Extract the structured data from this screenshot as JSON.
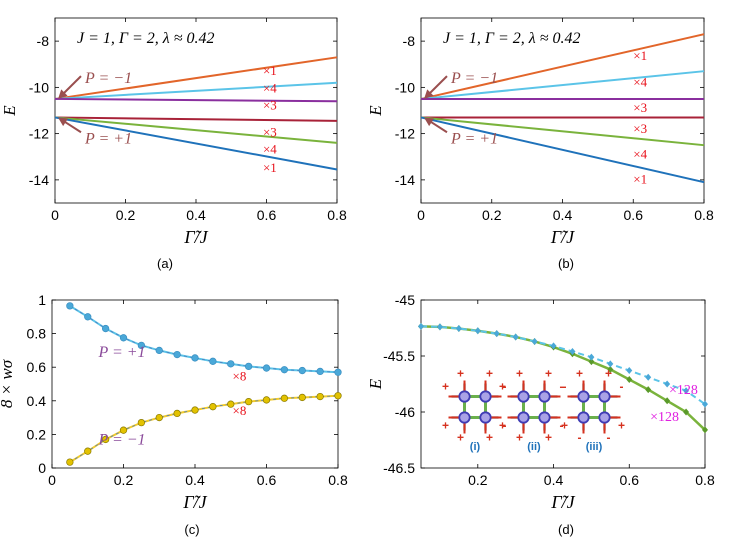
{
  "chart_data": [
    {
      "id": "a",
      "type": "line",
      "caption": "(a)",
      "annotation": "J = 1,  Γ = 2,  λ ≈ 0.42",
      "xlabel": "Γ̃/J",
      "ylabel": "E",
      "xlim": [
        0,
        0.8
      ],
      "ylim": [
        -15,
        -7
      ],
      "xticks": [
        "0",
        "0.2",
        "0.4",
        "0.6",
        "0.8"
      ],
      "yticks": [
        "-8",
        "-10",
        "-12",
        "-14"
      ],
      "parity_labels": [
        {
          "text": "P = −1",
          "points_to_y": -10.5,
          "label_y": -9.6
        },
        {
          "text": "P = +1",
          "points_to_y": -11.3,
          "label_y": -12.2
        }
      ],
      "series": [
        {
          "name": "×1",
          "color": "#e2652a",
          "x": [
            0,
            0.8
          ],
          "y": [
            -10.5,
            -8.7
          ]
        },
        {
          "name": "×4",
          "color": "#5bc4e8",
          "x": [
            0,
            0.8
          ],
          "y": [
            -10.5,
            -9.8
          ]
        },
        {
          "name": "×3",
          "color": "#8a2f9e",
          "x": [
            0,
            0.8
          ],
          "y": [
            -10.5,
            -10.6
          ]
        },
        {
          "name": "×3",
          "color": "#a82238",
          "x": [
            0,
            0.8
          ],
          "y": [
            -11.3,
            -11.45
          ]
        },
        {
          "name": "×4",
          "color": "#7ab33c",
          "x": [
            0,
            0.8
          ],
          "y": [
            -11.3,
            -12.4
          ]
        },
        {
          "name": "×1",
          "color": "#1f72ba",
          "x": [
            0,
            0.8
          ],
          "y": [
            -11.3,
            -13.55
          ]
        }
      ],
      "degeneracy_labels": [
        {
          "text": "×1",
          "x": 0.59,
          "y": -9.25
        },
        {
          "text": "×4",
          "x": 0.59,
          "y": -10.0
        },
        {
          "text": "×3",
          "x": 0.59,
          "y": -10.75
        },
        {
          "text": "×3",
          "x": 0.59,
          "y": -11.9
        },
        {
          "text": "×4",
          "x": 0.59,
          "y": -12.65
        },
        {
          "text": "×1",
          "x": 0.59,
          "y": -13.45
        }
      ]
    },
    {
      "id": "b",
      "type": "line",
      "caption": "(b)",
      "annotation": "J = 1,  Γ = 2,  λ ≈ 0.42",
      "xlabel": "Γ̃/J",
      "ylabel": "E",
      "xlim": [
        0,
        0.8
      ],
      "ylim": [
        -15,
        -7
      ],
      "xticks": [
        "0",
        "0.2",
        "0.4",
        "0.6",
        "0.8"
      ],
      "yticks": [
        "-8",
        "-10",
        "-12",
        "-14"
      ],
      "parity_labels": [
        {
          "text": "P = −1",
          "points_to_y": -10.5,
          "label_y": -9.6
        },
        {
          "text": "P = +1",
          "points_to_y": -11.3,
          "label_y": -12.2
        }
      ],
      "series": [
        {
          "name": "×1",
          "color": "#e2652a",
          "x": [
            0,
            0.8
          ],
          "y": [
            -10.5,
            -7.7
          ]
        },
        {
          "name": "×4",
          "color": "#5bc4e8",
          "x": [
            0,
            0.8
          ],
          "y": [
            -10.5,
            -9.3
          ]
        },
        {
          "name": "×3",
          "color": "#8a2f9e",
          "x": [
            0,
            0.8
          ],
          "y": [
            -10.5,
            -10.5
          ]
        },
        {
          "name": "×3",
          "color": "#a82238",
          "x": [
            0,
            0.8
          ],
          "y": [
            -11.3,
            -11.3
          ]
        },
        {
          "name": "×4",
          "color": "#7ab33c",
          "x": [
            0,
            0.8
          ],
          "y": [
            -11.3,
            -12.5
          ]
        },
        {
          "name": "×1",
          "color": "#1f72ba",
          "x": [
            0,
            0.8
          ],
          "y": [
            -11.3,
            -14.1
          ]
        }
      ],
      "degeneracy_labels": [
        {
          "text": "×1",
          "x": 0.6,
          "y": -8.6
        },
        {
          "text": "×4",
          "x": 0.6,
          "y": -9.75
        },
        {
          "text": "×3",
          "x": 0.6,
          "y": -10.85
        },
        {
          "text": "×3",
          "x": 0.6,
          "y": -11.75
        },
        {
          "text": "×4",
          "x": 0.6,
          "y": -12.85
        },
        {
          "text": "×1",
          "x": 0.6,
          "y": -13.95
        }
      ]
    },
    {
      "id": "c",
      "type": "line",
      "caption": "(c)",
      "xlabel": "Γ̃/J",
      "ylabel": "8 × wσ",
      "xlim": [
        0,
        0.8
      ],
      "ylim": [
        0,
        1
      ],
      "xticks": [
        "0",
        "0.2",
        "0.4",
        "0.6",
        "0.8"
      ],
      "yticks": [
        "0",
        "0.2",
        "0.4",
        "0.6",
        "0.8",
        "1"
      ],
      "series": [
        {
          "name": "P = +1",
          "label": "×8",
          "color": "#5bc4e8",
          "marker_color": "#4aa8d8",
          "x": [
            0.05,
            0.1,
            0.15,
            0.2,
            0.25,
            0.3,
            0.35,
            0.4,
            0.45,
            0.5,
            0.55,
            0.6,
            0.65,
            0.7,
            0.75,
            0.8
          ],
          "y": [
            0.965,
            0.9,
            0.83,
            0.775,
            0.73,
            0.7,
            0.675,
            0.655,
            0.635,
            0.62,
            0.605,
            0.595,
            0.585,
            0.58,
            0.575,
            0.57
          ]
        },
        {
          "name": "P = −1",
          "label": "×8",
          "color": "#f3cc2a",
          "marker_color": "#e3c200",
          "x": [
            0.05,
            0.1,
            0.15,
            0.2,
            0.25,
            0.3,
            0.35,
            0.4,
            0.45,
            0.5,
            0.55,
            0.6,
            0.65,
            0.7,
            0.75,
            0.8
          ],
          "y": [
            0.035,
            0.1,
            0.17,
            0.225,
            0.27,
            0.3,
            0.325,
            0.345,
            0.365,
            0.38,
            0.395,
            0.405,
            0.415,
            0.42,
            0.425,
            0.43
          ]
        }
      ]
    },
    {
      "id": "d",
      "type": "line",
      "caption": "(d)",
      "xlabel": "Γ̃/J",
      "ylabel": "E",
      "xlim": [
        0.05,
        0.8
      ],
      "ylim": [
        -46.5,
        -45
      ],
      "xticks": [
        "0.2",
        "0.4",
        "0.6",
        "0.8"
      ],
      "yticks": [
        "-45",
        "-45.5",
        "-46",
        "-46.5"
      ],
      "series": [
        {
          "name": "×128",
          "style": "dashed",
          "color": "#5bc4e8",
          "x": [
            0.05,
            0.1,
            0.15,
            0.2,
            0.25,
            0.3,
            0.35,
            0.4,
            0.45,
            0.5,
            0.55,
            0.6,
            0.65,
            0.7,
            0.75,
            0.8
          ],
          "y": [
            -45.235,
            -45.24,
            -45.255,
            -45.275,
            -45.3,
            -45.33,
            -45.37,
            -45.41,
            -45.46,
            -45.51,
            -45.57,
            -45.63,
            -45.69,
            -45.75,
            -45.81,
            -45.93
          ]
        },
        {
          "name": "×128",
          "style": "solid",
          "color": "#7ab33c",
          "x": [
            0.05,
            0.1,
            0.15,
            0.2,
            0.25,
            0.3,
            0.35,
            0.4,
            0.45,
            0.5,
            0.55,
            0.6,
            0.65,
            0.7,
            0.75,
            0.8
          ],
          "y": [
            -45.235,
            -45.24,
            -45.255,
            -45.275,
            -45.3,
            -45.33,
            -45.37,
            -45.42,
            -45.48,
            -45.55,
            -45.62,
            -45.71,
            -45.8,
            -45.9,
            -46.0,
            -46.16
          ]
        }
      ],
      "insets": [
        {
          "label": "(i)",
          "site_signs": [
            "+",
            "+",
            "+",
            "+",
            "+",
            "+",
            "+",
            "+"
          ]
        },
        {
          "label": "(ii)",
          "site_signs": [
            "-",
            "+",
            "+",
            "-",
            "-",
            "+",
            "+",
            "-"
          ]
        },
        {
          "label": "(iii)",
          "site_signs": [
            "-",
            "+",
            "+",
            "-",
            "+",
            "-",
            "-",
            "+"
          ]
        }
      ]
    }
  ]
}
